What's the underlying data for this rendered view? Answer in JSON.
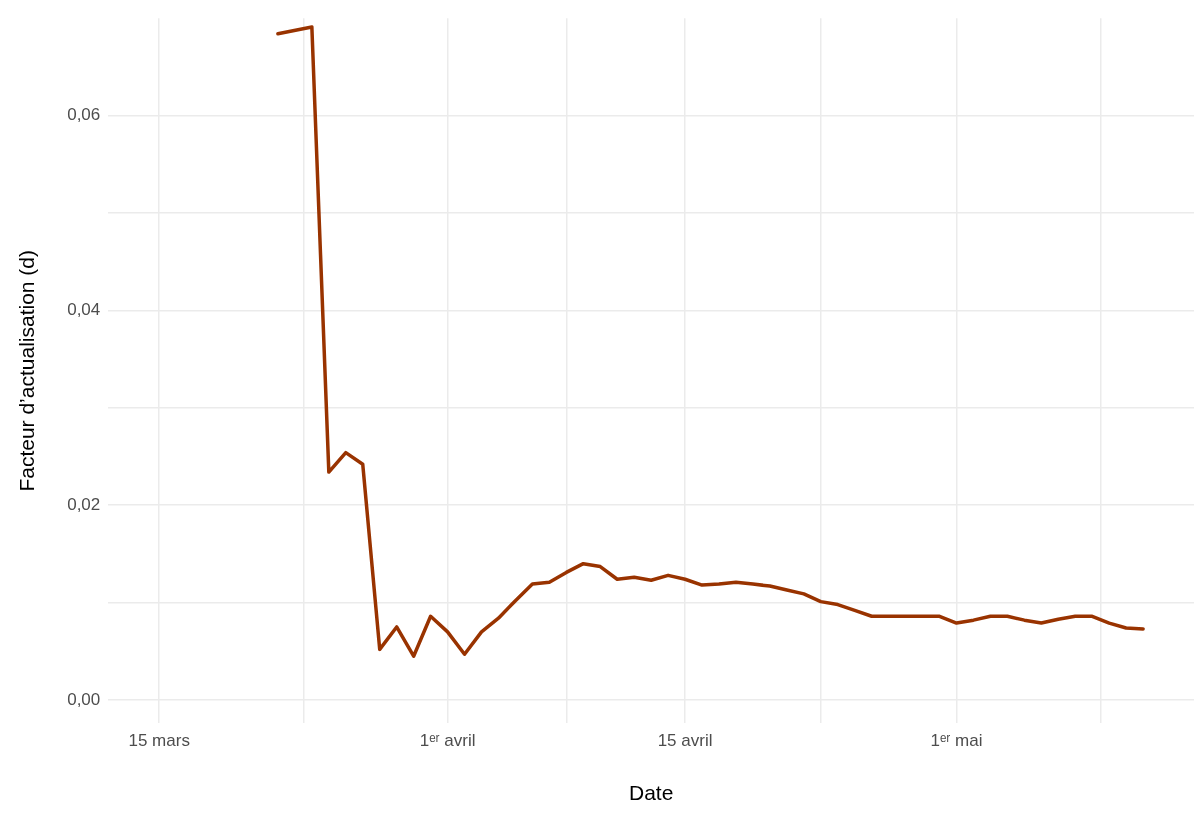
{
  "chart_data": {
    "type": "line",
    "xlabel": "Date",
    "ylabel": "Facteur d’actualisation (d)",
    "series": [
      {
        "color": "#993300",
        "x": [
          "--03-22",
          "--03-24",
          "--03-25",
          "--03-26",
          "--03-27",
          "--03-28",
          "--03-29",
          "--03-30",
          "--03-31",
          "--04-01",
          "--04-02",
          "--04-03",
          "--04-04",
          "--04-05",
          "--04-06",
          "--04-07",
          "--04-08",
          "--04-09",
          "--04-10",
          "--04-11",
          "--04-12",
          "--04-13",
          "--04-14",
          "--04-15",
          "--04-16",
          "--04-17",
          "--04-18",
          "--04-19",
          "--04-20",
          "--04-21",
          "--04-22",
          "--04-23",
          "--04-24",
          "--04-25",
          "--04-26",
          "--04-27",
          "--04-28",
          "--04-29",
          "--04-30",
          "--05-01",
          "--05-02",
          "--05-03",
          "--05-04",
          "--05-05",
          "--05-06",
          "--05-07",
          "--05-08",
          "--05-09",
          "--05-10",
          "--05-11",
          "--05-12"
        ],
        "values": [
          0.0684,
          0.0691,
          0.0234,
          0.0254,
          0.0242,
          0.0052,
          0.0075,
          0.0045,
          0.0086,
          0.007,
          0.0047,
          0.007,
          0.0084,
          0.0102,
          0.0119,
          0.0121,
          0.0131,
          0.014,
          0.0137,
          0.0124,
          0.0126,
          0.0123,
          0.0128,
          0.0124,
          0.0118,
          0.0119,
          0.0121,
          0.0119,
          0.0117,
          0.0113,
          0.0109,
          0.0101,
          0.0098,
          0.0092,
          0.0086,
          0.0086,
          0.0086,
          0.0086,
          0.0086,
          0.0079,
          0.0082,
          0.0086,
          0.0086,
          0.0082,
          0.0079,
          0.0083,
          0.0086,
          0.0086,
          0.0079,
          0.0074,
          0.0073
        ]
      }
    ],
    "xlim": [
      "--03-12",
      "--05-15"
    ],
    "xticks": [
      {
        "value": "--03-15",
        "label": "15 mars"
      },
      {
        "value": "--03-23T12:00",
        "label": null
      },
      {
        "value": "--04-01",
        "label": "1ᵉʳ avril"
      },
      {
        "value": "--04-08",
        "label": null
      },
      {
        "value": "--04-15",
        "label": "15 avril"
      },
      {
        "value": "--04-23",
        "label": null
      },
      {
        "value": "--05-01",
        "label": "1ᵉʳ mai"
      },
      {
        "value": "--05-09T12:00",
        "label": null
      }
    ],
    "ylim": [
      -0.0024,
      0.07
    ],
    "yticks": [
      {
        "value": 0,
        "label": "0,00"
      },
      {
        "value": 0.01,
        "label": null
      },
      {
        "value": 0.02,
        "label": "0,02"
      },
      {
        "value": 0.03,
        "label": null
      },
      {
        "value": 0.04,
        "label": "0,04"
      },
      {
        "value": 0.05,
        "label": null
      },
      {
        "value": 0.06,
        "label": "0,06"
      }
    ],
    "grid": true,
    "legend": false,
    "marker": "none",
    "line_style": "solid"
  }
}
